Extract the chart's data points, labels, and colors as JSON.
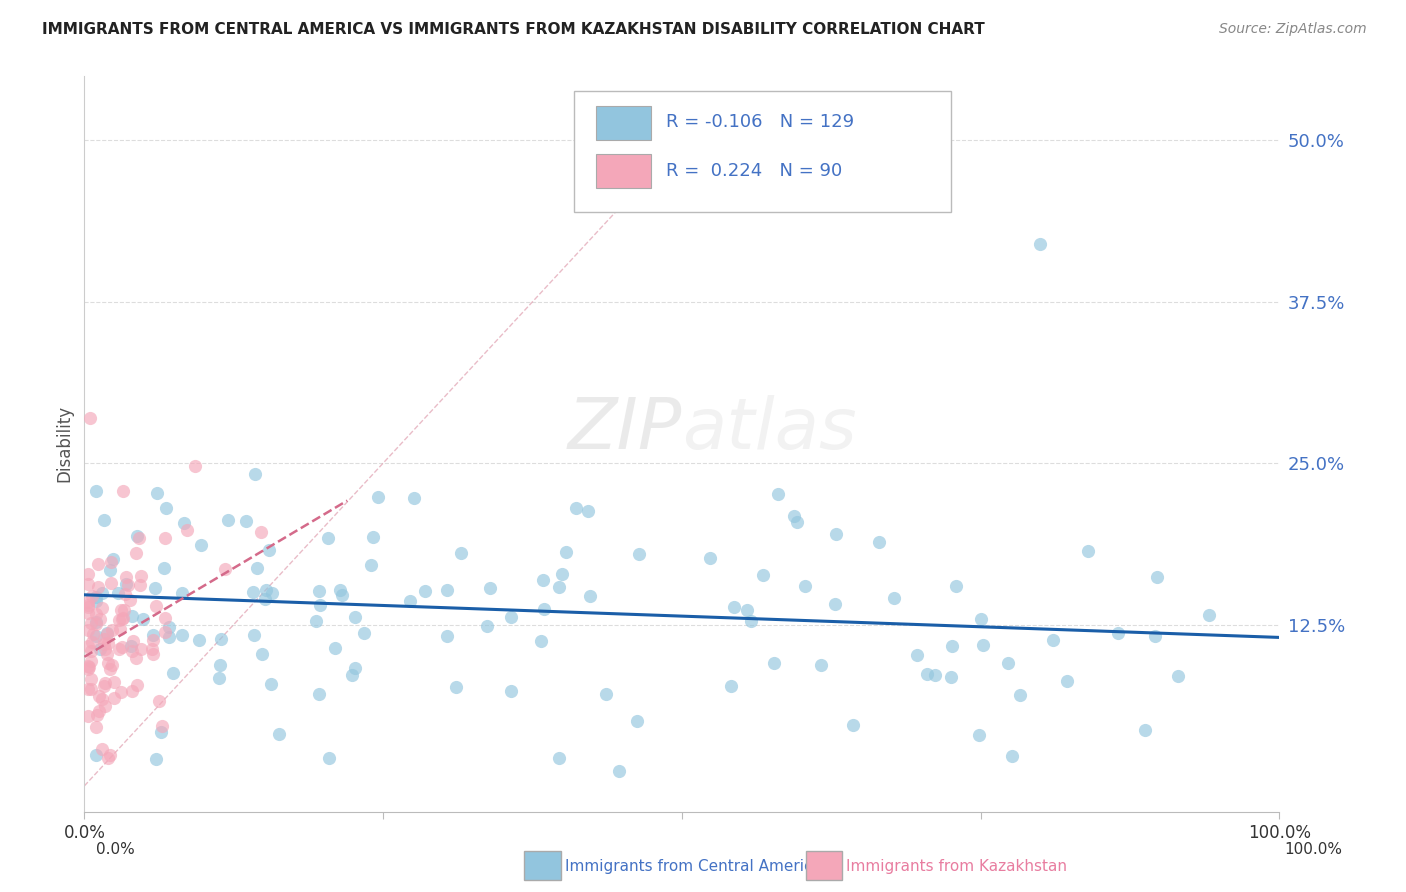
{
  "title": "IMMIGRANTS FROM CENTRAL AMERICA VS IMMIGRANTS FROM KAZAKHSTAN DISABILITY CORRELATION CHART",
  "source": "Source: ZipAtlas.com",
  "ylabel": "Disability",
  "xlim": [
    0.0,
    1.0
  ],
  "ylim": [
    -0.02,
    0.55
  ],
  "yticks": [
    0.0,
    0.125,
    0.25,
    0.375,
    0.5
  ],
  "ytick_labels": [
    "",
    "12.5%",
    "25.0%",
    "37.5%",
    "50.0%"
  ],
  "xticks": [
    0.0,
    0.25,
    0.5,
    0.75,
    1.0
  ],
  "xtick_labels": [
    "0.0%",
    "",
    "",
    "",
    "100.0%"
  ],
  "blue_R": -0.106,
  "blue_N": 129,
  "pink_R": 0.224,
  "pink_N": 90,
  "legend_label_blue": "Immigrants from Central America",
  "legend_label_pink": "Immigrants from Kazakhstan",
  "blue_color": "#92C5DE",
  "pink_color": "#F4A7B9",
  "blue_line_color": "#1A5EA8",
  "pink_line_color": "#D46A8A",
  "diag_line_color": "#E0A0B0",
  "watermark_color": "#DADADA",
  "background_color": "#FFFFFF",
  "grid_color": "#DDDDDD",
  "title_color": "#222222",
  "source_color": "#888888",
  "tick_label_color": "#4472C4",
  "legend_text_color": "#4472C4"
}
